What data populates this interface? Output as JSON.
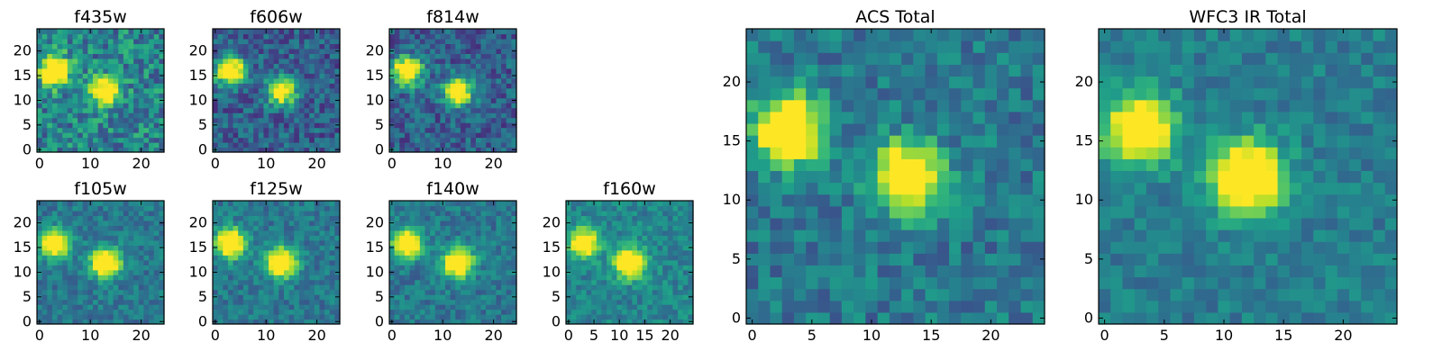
{
  "chart_data": {
    "type": "heatmap",
    "colormap": "viridis",
    "grid": false,
    "legend": "none",
    "panels": [
      {
        "title": "f435w",
        "xlim": [
          0,
          24
        ],
        "ylim": [
          0,
          24
        ],
        "xticks": [
          "0",
          "10",
          "20"
        ],
        "yticks": [
          "0",
          "5",
          "10",
          "15",
          "20"
        ],
        "sources": [
          {
            "x": 3,
            "y": 16,
            "amp": 1.0
          },
          {
            "x": 13,
            "y": 12,
            "amp": 0.85
          }
        ],
        "noise": 0.45,
        "background": 0.45
      },
      {
        "title": "f606w",
        "xlim": [
          0,
          24
        ],
        "ylim": [
          0,
          24
        ],
        "xticks": [
          "0",
          "10",
          "20"
        ],
        "yticks": [
          "0",
          "5",
          "10",
          "15",
          "20"
        ],
        "sources": [
          {
            "x": 3,
            "y": 16,
            "amp": 1.0
          },
          {
            "x": 13,
            "y": 12,
            "amp": 0.9
          }
        ],
        "noise": 0.35,
        "background": 0.3
      },
      {
        "title": "f814w",
        "xlim": [
          0,
          24
        ],
        "ylim": [
          0,
          24
        ],
        "xticks": [
          "0",
          "10",
          "20"
        ],
        "yticks": [
          "0",
          "5",
          "10",
          "15",
          "20"
        ],
        "sources": [
          {
            "x": 3,
            "y": 16,
            "amp": 1.0
          },
          {
            "x": 13,
            "y": 12,
            "amp": 0.9
          }
        ],
        "noise": 0.35,
        "background": 0.3
      },
      {
        "title": "f105w",
        "xlim": [
          0,
          24
        ],
        "ylim": [
          0,
          24
        ],
        "xticks": [
          "0",
          "10",
          "20"
        ],
        "yticks": [
          "0",
          "5",
          "10",
          "15",
          "20"
        ],
        "sources": [
          {
            "x": 3,
            "y": 16,
            "amp": 0.9
          },
          {
            "x": 13,
            "y": 12,
            "amp": 1.0
          }
        ],
        "noise": 0.25,
        "background": 0.4
      },
      {
        "title": "f125w",
        "xlim": [
          0,
          24
        ],
        "ylim": [
          0,
          24
        ],
        "xticks": [
          "0",
          "10",
          "20"
        ],
        "yticks": [
          "0",
          "5",
          "10",
          "15",
          "20"
        ],
        "sources": [
          {
            "x": 3,
            "y": 16,
            "amp": 0.95
          },
          {
            "x": 13,
            "y": 12,
            "amp": 1.0
          }
        ],
        "noise": 0.25,
        "background": 0.4
      },
      {
        "title": "f140w",
        "xlim": [
          0,
          24
        ],
        "ylim": [
          0,
          24
        ],
        "xticks": [
          "0",
          "10",
          "20"
        ],
        "yticks": [
          "0",
          "5",
          "10",
          "15",
          "20"
        ],
        "sources": [
          {
            "x": 3,
            "y": 16,
            "amp": 0.95
          },
          {
            "x": 13,
            "y": 12,
            "amp": 1.0
          }
        ],
        "noise": 0.25,
        "background": 0.4
      },
      {
        "title": "f160w",
        "xlim": [
          0,
          24
        ],
        "ylim": [
          0,
          24
        ],
        "xticks": [
          "0",
          "5",
          "10",
          "15",
          "20"
        ],
        "yticks": [
          "0",
          "5",
          "10",
          "15",
          "20"
        ],
        "sources": [
          {
            "x": 3,
            "y": 16,
            "amp": 0.85
          },
          {
            "x": 12,
            "y": 12,
            "amp": 1.0
          }
        ],
        "noise": 0.25,
        "background": 0.45
      },
      {
        "title": "ACS Total",
        "xlim": [
          0,
          24
        ],
        "ylim": [
          0,
          24
        ],
        "xticks": [
          "0",
          "5",
          "10",
          "15",
          "20"
        ],
        "yticks": [
          "0",
          "5",
          "10",
          "15",
          "20"
        ],
        "sources": [
          {
            "x": 3,
            "y": 16,
            "amp": 1.0
          },
          {
            "x": 13,
            "y": 12,
            "amp": 0.9
          }
        ],
        "noise": 0.3,
        "background": 0.4
      },
      {
        "title": "WFC3 IR Total",
        "xlim": [
          0,
          24
        ],
        "ylim": [
          0,
          24
        ],
        "xticks": [
          "0",
          "5",
          "10",
          "15",
          "20"
        ],
        "yticks": [
          "0",
          "5",
          "10",
          "15",
          "20"
        ],
        "sources": [
          {
            "x": 3,
            "y": 16,
            "amp": 0.9
          },
          {
            "x": 12,
            "y": 12,
            "amp": 1.0
          }
        ],
        "noise": 0.22,
        "background": 0.42
      }
    ]
  }
}
